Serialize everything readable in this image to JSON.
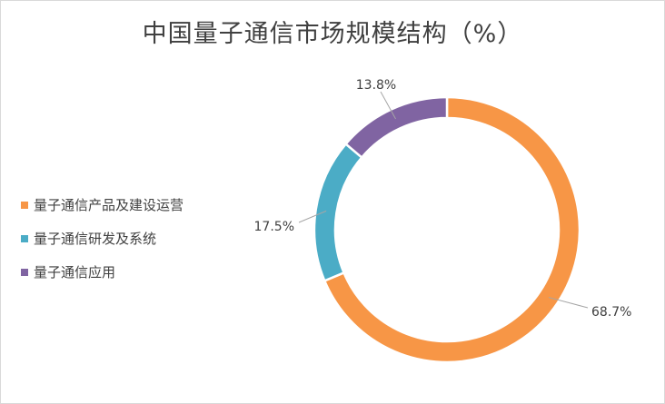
{
  "chart_data": {
    "type": "pie",
    "donut": true,
    "title": "中国量子通信市场规模结构（%）",
    "categories": [
      "量子通信产品及建设运营",
      "量子通信研发及系统",
      "量子通信应用"
    ],
    "values": [
      68.7,
      17.5,
      13.8
    ],
    "data_labels": [
      "68.7%",
      "17.5%",
      "13.8%"
    ],
    "colors": [
      "#f79646",
      "#4bacc6",
      "#8064a2"
    ],
    "legend_position": "left"
  }
}
